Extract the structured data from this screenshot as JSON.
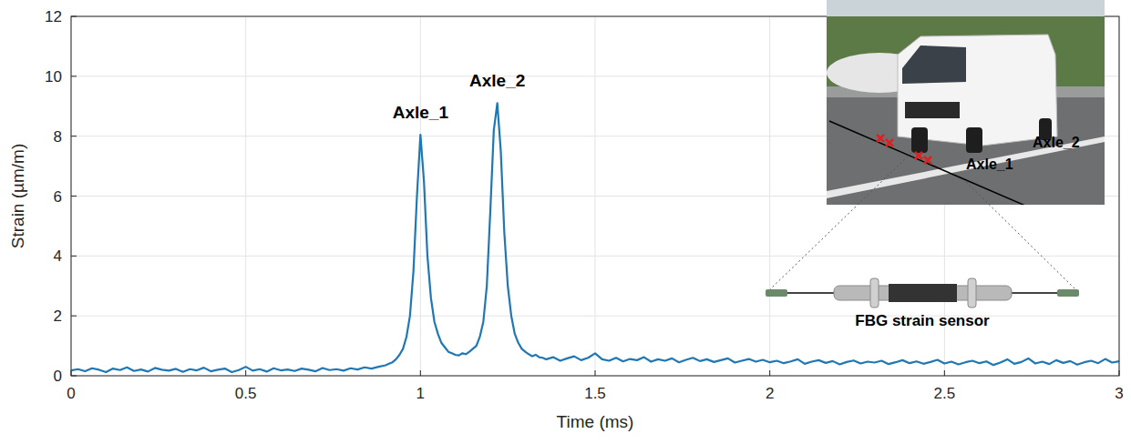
{
  "chart_data": {
    "type": "line",
    "xlabel": "Time (ms)",
    "ylabel": "Strain (µm/m)",
    "color": "#1f77b4",
    "grid": true,
    "xlim": [
      0,
      3
    ],
    "ylim": [
      0,
      12
    ],
    "xticks": [
      0,
      0.5,
      1,
      1.5,
      2,
      2.5,
      3
    ],
    "yticks": [
      0,
      2,
      4,
      6,
      8,
      10,
      12
    ],
    "annotations": [
      {
        "text": "Axle_1",
        "x": 1.0,
        "y": 8.6
      },
      {
        "text": "Axle_2",
        "x": 1.22,
        "y": 9.65
      }
    ],
    "x": [
      0,
      0.02,
      0.04,
      0.06,
      0.08,
      0.1,
      0.12,
      0.14,
      0.16,
      0.18,
      0.2,
      0.22,
      0.24,
      0.26,
      0.28,
      0.3,
      0.32,
      0.34,
      0.36,
      0.38,
      0.4,
      0.42,
      0.44,
      0.46,
      0.48,
      0.5,
      0.52,
      0.54,
      0.56,
      0.58,
      0.6,
      0.62,
      0.64,
      0.66,
      0.68,
      0.7,
      0.72,
      0.74,
      0.76,
      0.78,
      0.8,
      0.82,
      0.84,
      0.86,
      0.88,
      0.9,
      0.91,
      0.92,
      0.93,
      0.94,
      0.95,
      0.96,
      0.97,
      0.98,
      0.99,
      1.0,
      1.01,
      1.02,
      1.03,
      1.04,
      1.05,
      1.06,
      1.07,
      1.08,
      1.09,
      1.1,
      1.11,
      1.12,
      1.13,
      1.14,
      1.15,
      1.16,
      1.17,
      1.18,
      1.19,
      1.2,
      1.21,
      1.22,
      1.23,
      1.24,
      1.25,
      1.26,
      1.27,
      1.28,
      1.29,
      1.3,
      1.31,
      1.32,
      1.33,
      1.34,
      1.35,
      1.36,
      1.38,
      1.4,
      1.42,
      1.44,
      1.46,
      1.48,
      1.5,
      1.52,
      1.54,
      1.56,
      1.58,
      1.6,
      1.62,
      1.64,
      1.66,
      1.68,
      1.7,
      1.72,
      1.74,
      1.76,
      1.78,
      1.8,
      1.82,
      1.84,
      1.86,
      1.88,
      1.9,
      1.92,
      1.94,
      1.96,
      1.98,
      2.0,
      2.02,
      2.04,
      2.06,
      2.08,
      2.1,
      2.12,
      2.14,
      2.16,
      2.18,
      2.2,
      2.22,
      2.24,
      2.26,
      2.28,
      2.3,
      2.32,
      2.34,
      2.36,
      2.38,
      2.4,
      2.42,
      2.44,
      2.46,
      2.48,
      2.5,
      2.52,
      2.54,
      2.56,
      2.58,
      2.6,
      2.62,
      2.64,
      2.66,
      2.68,
      2.7,
      2.72,
      2.74,
      2.76,
      2.78,
      2.8,
      2.82,
      2.84,
      2.86,
      2.88,
      2.9,
      2.92,
      2.94,
      2.96,
      2.98,
      3.0
    ],
    "values": [
      0.18,
      0.22,
      0.15,
      0.25,
      0.2,
      0.12,
      0.24,
      0.19,
      0.28,
      0.16,
      0.21,
      0.14,
      0.26,
      0.2,
      0.17,
      0.23,
      0.13,
      0.22,
      0.18,
      0.27,
      0.15,
      0.2,
      0.24,
      0.12,
      0.19,
      0.3,
      0.17,
      0.22,
      0.14,
      0.25,
      0.18,
      0.21,
      0.16,
      0.24,
      0.2,
      0.15,
      0.26,
      0.19,
      0.22,
      0.17,
      0.25,
      0.21,
      0.28,
      0.24,
      0.3,
      0.35,
      0.4,
      0.45,
      0.55,
      0.7,
      0.9,
      1.3,
      2.0,
      3.5,
      6.0,
      8.05,
      6.5,
      4.0,
      2.6,
      1.8,
      1.4,
      1.1,
      0.95,
      0.8,
      0.75,
      0.7,
      0.68,
      0.75,
      0.72,
      0.8,
      0.9,
      1.0,
      1.3,
      1.8,
      3.0,
      5.5,
      8.2,
      9.1,
      7.5,
      4.8,
      3.0,
      2.0,
      1.4,
      1.1,
      0.9,
      0.8,
      0.72,
      0.65,
      0.7,
      0.62,
      0.6,
      0.55,
      0.62,
      0.5,
      0.58,
      0.65,
      0.52,
      0.6,
      0.75,
      0.55,
      0.5,
      0.6,
      0.48,
      0.56,
      0.52,
      0.62,
      0.47,
      0.55,
      0.5,
      0.58,
      0.45,
      0.53,
      0.6,
      0.49,
      0.55,
      0.46,
      0.52,
      0.58,
      0.44,
      0.5,
      0.56,
      0.47,
      0.53,
      0.45,
      0.5,
      0.42,
      0.48,
      0.55,
      0.4,
      0.47,
      0.52,
      0.43,
      0.49,
      0.38,
      0.46,
      0.51,
      0.41,
      0.47,
      0.44,
      0.5,
      0.39,
      0.45,
      0.52,
      0.42,
      0.48,
      0.4,
      0.46,
      0.53,
      0.41,
      0.47,
      0.38,
      0.45,
      0.5,
      0.42,
      0.48,
      0.36,
      0.44,
      0.55,
      0.4,
      0.46,
      0.58,
      0.41,
      0.47,
      0.39,
      0.52,
      0.43,
      0.49,
      0.37,
      0.45,
      0.5,
      0.42,
      0.56,
      0.44,
      0.48
    ]
  },
  "inset": {
    "axle_labels": [
      "Axle_1",
      "Axle_2"
    ],
    "sensor_label": "FBG strain sensor"
  }
}
